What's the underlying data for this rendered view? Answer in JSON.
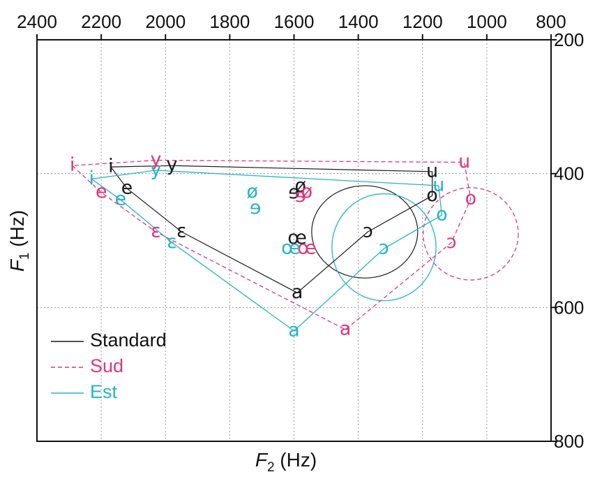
{
  "chart_data": {
    "type": "scatter",
    "title": "",
    "xlabel": {
      "main": "F",
      "sub": "2",
      "unit": " (Hz)"
    },
    "ylabel": {
      "main": "F",
      "sub": "1",
      "unit": " (Hz)"
    },
    "xlim": [
      2400,
      800
    ],
    "ylim": [
      200,
      800
    ],
    "x_reversed": true,
    "y_reversed": true,
    "x_ticks": [
      "2400",
      "2200",
      "2000",
      "1800",
      "1600",
      "1400",
      "1200",
      "1000",
      "800"
    ],
    "y_ticks": [
      "200",
      "400",
      "600",
      "800"
    ],
    "grid": true,
    "legend_position": "bottom-left",
    "colors": {
      "Standard": "#1a1a1a",
      "Sud": "#e0357a",
      "Est": "#27b3c7"
    },
    "series": [
      {
        "name": "Standard",
        "line": "solid",
        "points": [
          {
            "label": "i",
            "x": 2170,
            "y": 390
          },
          {
            "label": "y",
            "x": 1980,
            "y": 388
          },
          {
            "label": "e",
            "x": 2120,
            "y": 422
          },
          {
            "label": "ɛ",
            "x": 1950,
            "y": 487
          },
          {
            "label": "a",
            "x": 1590,
            "y": 578
          },
          {
            "label": "ø",
            "x": 1580,
            "y": 419
          },
          {
            "label": "ɘ",
            "x": 1600,
            "y": 429
          },
          {
            "label": "œ",
            "x": 1590,
            "y": 497
          },
          {
            "label": "ɔ",
            "x": 1370,
            "y": 487
          },
          {
            "label": "o",
            "x": 1170,
            "y": 433
          },
          {
            "label": "u",
            "x": 1170,
            "y": 397
          }
        ],
        "outline": [
          "i",
          "e",
          "ɛ",
          "a",
          "ɔ",
          "o",
          "u",
          "y",
          "i"
        ],
        "ellipse": {
          "cx": 1380,
          "cy": 487,
          "rx": 165,
          "ry": 69
        }
      },
      {
        "name": "Sud",
        "line": "dashed",
        "points": [
          {
            "label": "i",
            "x": 2290,
            "y": 388
          },
          {
            "label": "y",
            "x": 2030,
            "y": 380
          },
          {
            "label": "e",
            "x": 2200,
            "y": 428
          },
          {
            "label": "ɛ",
            "x": 2030,
            "y": 487
          },
          {
            "label": "a",
            "x": 1440,
            "y": 633
          },
          {
            "label": "ø",
            "x": 1560,
            "y": 428
          },
          {
            "label": "ɘ",
            "x": 1580,
            "y": 434
          },
          {
            "label": "œ",
            "x": 1560,
            "y": 512
          },
          {
            "label": "ɔ",
            "x": 1110,
            "y": 503
          },
          {
            "label": "o",
            "x": 1050,
            "y": 438
          },
          {
            "label": "u",
            "x": 1070,
            "y": 383
          }
        ],
        "outline": [
          "i",
          "e",
          "ɛ",
          "a",
          "ɔ",
          "o",
          "u",
          "y",
          "i"
        ],
        "ellipse": {
          "cx": 1050,
          "cy": 490,
          "rx": 148,
          "ry": 69
        }
      },
      {
        "name": "Est",
        "line": "solid",
        "points": [
          {
            "label": "i",
            "x": 2230,
            "y": 408
          },
          {
            "label": "y",
            "x": 2030,
            "y": 395
          },
          {
            "label": "e",
            "x": 2140,
            "y": 439
          },
          {
            "label": "ɛ",
            "x": 1980,
            "y": 503
          },
          {
            "label": "a",
            "x": 1600,
            "y": 635
          },
          {
            "label": "ø",
            "x": 1730,
            "y": 428
          },
          {
            "label": "ɘ",
            "x": 1720,
            "y": 452
          },
          {
            "label": "œ",
            "x": 1610,
            "y": 512
          },
          {
            "label": "ɔ",
            "x": 1320,
            "y": 512
          },
          {
            "label": "o",
            "x": 1140,
            "y": 462
          },
          {
            "label": "u",
            "x": 1150,
            "y": 418
          }
        ],
        "outline": [
          "i",
          "e",
          "ɛ",
          "a",
          "ɔ",
          "o",
          "u",
          "y",
          "i"
        ],
        "ellipse": {
          "cx": 1320,
          "cy": 510,
          "rx": 162,
          "ry": 80
        }
      }
    ]
  }
}
